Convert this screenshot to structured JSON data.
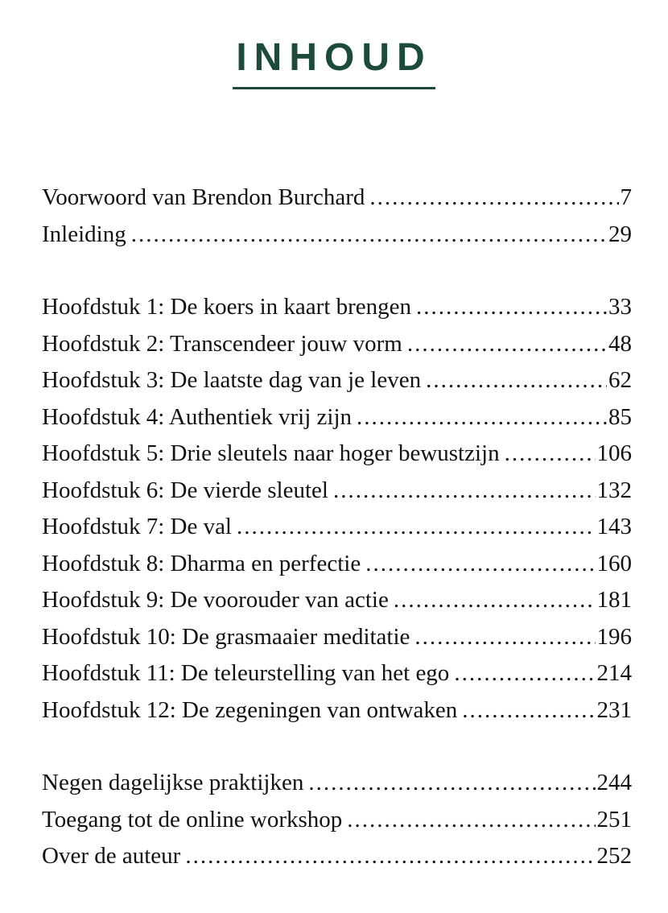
{
  "page": {
    "title": "INHOUD",
    "accent_color": "#1c4b39",
    "text_color": "#121212",
    "background_color": "#ffffff"
  },
  "toc": {
    "groups": [
      {
        "entries": [
          {
            "label": "Voorwoord van Brendon Burchard",
            "page": "7"
          },
          {
            "label": "Inleiding",
            "page": "29"
          }
        ]
      },
      {
        "entries": [
          {
            "label": "Hoofdstuk 1: De koers in kaart brengen",
            "page": "33"
          },
          {
            "label": "Hoofdstuk 2: Transcendeer jouw vorm",
            "page": "48"
          },
          {
            "label": "Hoofdstuk 3: De laatste dag van je leven",
            "page": "62"
          },
          {
            "label": "Hoofdstuk 4: Authentiek vrij zijn",
            "page": "85"
          },
          {
            "label": "Hoofdstuk 5: Drie sleutels naar hoger bewustzijn",
            "page": "106"
          },
          {
            "label": "Hoofdstuk 6: De vierde sleutel",
            "page": "132"
          },
          {
            "label": "Hoofdstuk 7: De val",
            "page": "143"
          },
          {
            "label": "Hoofdstuk 8: Dharma en perfectie",
            "page": "160"
          },
          {
            "label": "Hoofdstuk 9: De voorouder van actie",
            "page": "181"
          },
          {
            "label": "Hoofdstuk 10: De grasmaaier meditatie",
            "page": "196"
          },
          {
            "label": "Hoofdstuk 11: De teleurstelling van het ego",
            "page": "214"
          },
          {
            "label": "Hoofdstuk 12: De zegeningen van ontwaken",
            "page": "231"
          }
        ]
      },
      {
        "entries": [
          {
            "label": "Negen dagelijkse praktijken",
            "page": "244"
          },
          {
            "label": "Toegang tot de online workshop",
            "page": "251"
          },
          {
            "label": "Over de auteur",
            "page": "252"
          }
        ]
      }
    ]
  }
}
